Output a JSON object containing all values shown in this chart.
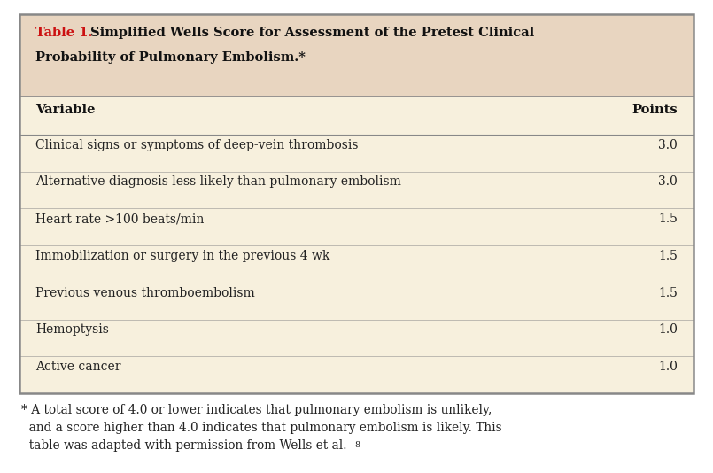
{
  "title_prefix": "Table 1.",
  "title_rest": " Simplified Wells Score for Assessment of the Pretest Clinical\nProbability of Pulmonary Embolism.*",
  "header_col1": "Variable",
  "header_col2": "Points",
  "rows": [
    [
      "Clinical signs or symptoms of deep-vein thrombosis",
      "3.0"
    ],
    [
      "Alternative diagnosis less likely than pulmonary embolism",
      "3.0"
    ],
    [
      "Heart rate >100 beats/min",
      "1.5"
    ],
    [
      "Immobilization or surgery in the previous 4 wk",
      "1.5"
    ],
    [
      "Previous venous thromboembolism",
      "1.5"
    ],
    [
      "Hemoptysis",
      "1.0"
    ],
    [
      "Active cancer",
      "1.0"
    ]
  ],
  "footnote_line1": "* A total score of 4.0 or lower indicates that pulmonary embolism is unlikely,",
  "footnote_line2": "  and a score higher than 4.0 indicates that pulmonary embolism is likely. This",
  "footnote_line3": "  table was adapted with permission from Wells et al.",
  "footnote_superscript": "8",
  "bg_color_header": "#e8d5c0",
  "bg_color_table": "#f7f0dd",
  "bg_color_outer": "#ffffff",
  "border_color": "#888888",
  "title_prefix_color": "#cc1111",
  "title_text_color": "#111111",
  "header_text_color": "#111111",
  "row_text_color": "#222222",
  "footnote_color": "#222222",
  "title_fontsize": 10.5,
  "header_fontsize": 10.5,
  "row_fontsize": 10.0,
  "footnote_fontsize": 9.8
}
